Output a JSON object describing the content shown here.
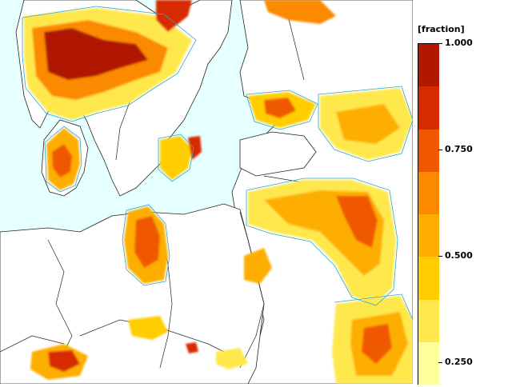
{
  "legend": {
    "title": "[fraction]",
    "ticks": [
      {
        "value": 1.0,
        "label": "1.000"
      },
      {
        "value": 0.75,
        "label": "0.750"
      },
      {
        "value": 0.5,
        "label": "0.500"
      },
      {
        "value": 0.25,
        "label": "0.250"
      }
    ],
    "range": [
      0.2,
      1.0
    ],
    "classes": [
      {
        "from": 0.9,
        "to": 1.0,
        "color": "#b01800"
      },
      {
        "from": 0.8,
        "to": 0.9,
        "color": "#d82a00"
      },
      {
        "from": 0.7,
        "to": 0.8,
        "color": "#f05800"
      },
      {
        "from": 0.6,
        "to": 0.7,
        "color": "#fb8a00"
      },
      {
        "from": 0.5,
        "to": 0.6,
        "color": "#fdae00"
      },
      {
        "from": 0.4,
        "to": 0.5,
        "color": "#ffcd00"
      },
      {
        "from": 0.3,
        "to": 0.4,
        "color": "#ffe84c"
      },
      {
        "from": 0.2,
        "to": 0.3,
        "color": "#ffff9a"
      }
    ]
  },
  "map": {
    "background_color": "#e6ffff",
    "land_color": "#ffffff",
    "contour_color": "#2aa8d8",
    "border_color": "#222222"
  }
}
